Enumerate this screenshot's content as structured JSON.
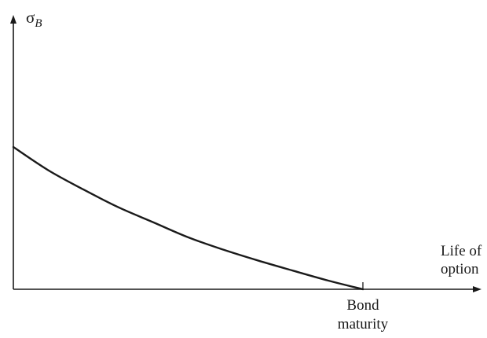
{
  "chart_data": {
    "type": "line",
    "title": "",
    "ylabel": {
      "symbol": "σ",
      "subscript": "B"
    },
    "xlabel": {
      "line1": "Life of",
      "line2": "option"
    },
    "x_ticks": [
      {
        "x": 1.0,
        "label_line1": "Bond",
        "label_line2": "maturity"
      }
    ],
    "xlim": [
      0,
      1.35
    ],
    "ylim": [
      0,
      1.0
    ],
    "grid": false,
    "series": [
      {
        "x": [
          0,
          0.1,
          0.2,
          0.3,
          0.4,
          0.5,
          0.6,
          0.7,
          0.8,
          0.9,
          1.0
        ],
        "values": [
          0.52,
          0.435,
          0.365,
          0.3,
          0.245,
          0.19,
          0.145,
          0.105,
          0.068,
          0.032,
          0.0
        ]
      }
    ]
  }
}
